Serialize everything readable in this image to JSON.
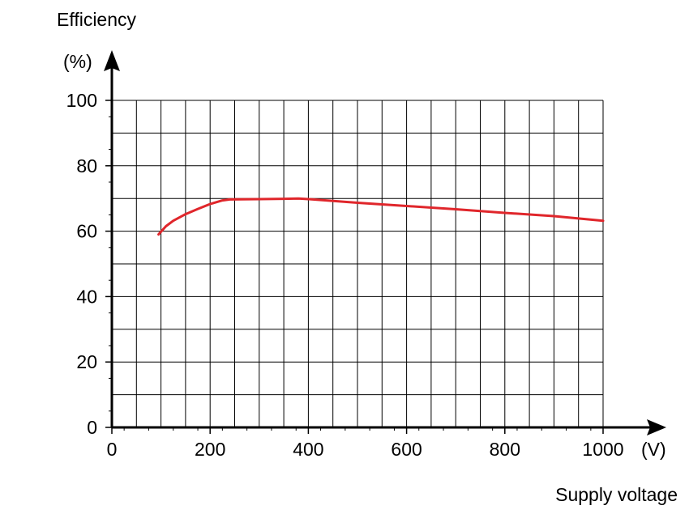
{
  "chart_data": {
    "type": "line",
    "ylabel_line1": "Efficiency",
    "ylabel_line2": "(%)",
    "xlabel": "Supply voltage",
    "xunit": "(V)",
    "xlim": [
      0,
      1000
    ],
    "ylim": [
      0,
      100
    ],
    "x_ticks": [
      "0",
      "200",
      "400",
      "600",
      "800",
      "1000"
    ],
    "y_ticks": [
      "0",
      "20",
      "40",
      "60",
      "80",
      "100"
    ],
    "grid": true,
    "series": [
      {
        "color": "#e0262b",
        "x": [
          95,
          110,
          125,
          150,
          175,
          200,
          225,
          240,
          300,
          350,
          380,
          400,
          500,
          600,
          700,
          800,
          900,
          1000
        ],
        "y": [
          59,
          61.5,
          63.2,
          65.2,
          66.8,
          68.3,
          69.4,
          69.7,
          69.8,
          69.9,
          70,
          69.8,
          68.7,
          67.7,
          66.7,
          65.6,
          64.6,
          63.2
        ]
      }
    ]
  }
}
